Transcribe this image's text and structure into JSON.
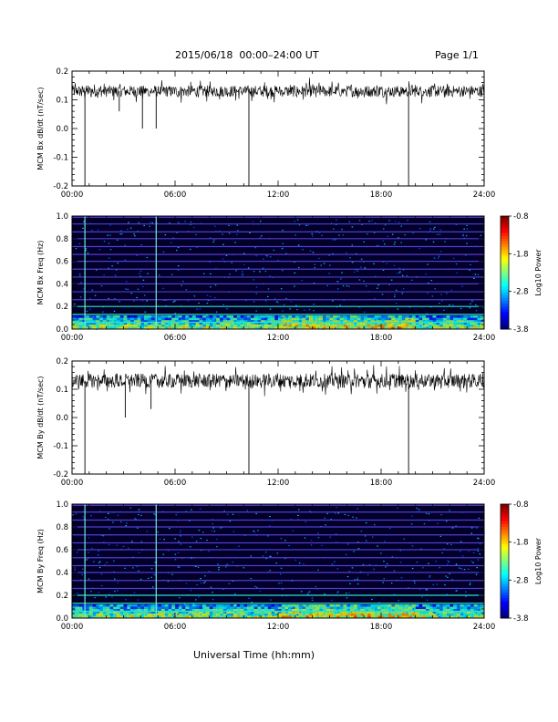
{
  "header": {
    "title": "2015/06/18  00:00–24:00 UT",
    "page": "Page 1/1"
  },
  "colors": {
    "trace": "#000000",
    "background": "#ffffff",
    "spectrogram_bg": "#000028"
  },
  "chart_data": [
    {
      "type": "line",
      "ylabel": "MCM Bx dB/dt (nT/sec)",
      "xlim": [
        0,
        24
      ],
      "xticks": [
        "00:00",
        "06:00",
        "12:00",
        "18:00",
        "24:00"
      ],
      "ylim": [
        -0.2,
        0.2
      ],
      "yticks": [
        -0.2,
        -0.1,
        0.0,
        0.1,
        0.2
      ],
      "baseline": 0.13,
      "noise_amplitude": 0.02,
      "spikes": [
        {
          "x": 0.75,
          "y": -0.2
        },
        {
          "x": 2.75,
          "y": 0.06
        },
        {
          "x": 4.1,
          "y": 0.0
        },
        {
          "x": 4.9,
          "y": 0.0
        },
        {
          "x": 10.3,
          "y": -0.2
        },
        {
          "x": 19.6,
          "y": -0.2
        }
      ]
    },
    {
      "type": "heatmap",
      "ylabel": "MCM Bx Freq (Hz)",
      "xlim": [
        0,
        24
      ],
      "xticks": [
        "00:00",
        "06:00",
        "12:00",
        "18:00",
        "24:00"
      ],
      "ylim": [
        0,
        1.0
      ],
      "yticks": [
        0.0,
        0.2,
        0.4,
        0.6,
        0.8,
        1.0
      ],
      "harmonic_lines_hz": [
        0.06,
        0.13,
        0.2,
        0.26,
        0.33,
        0.4,
        0.46,
        0.53,
        0.6,
        0.66,
        0.73,
        0.8,
        0.86,
        0.93,
        0.99
      ],
      "vertical_lines": [
        0.75,
        4.9
      ],
      "colorbar": {
        "label": "Log10 Power",
        "ticks": [
          -0.8,
          -1.8,
          -2.8,
          -3.8
        ]
      }
    },
    {
      "type": "line",
      "ylabel": "MCM By dB/dt (nT/sec)",
      "xlim": [
        0,
        24
      ],
      "xticks": [
        "00:00",
        "06:00",
        "12:00",
        "18:00",
        "24:00"
      ],
      "ylim": [
        -0.2,
        0.2
      ],
      "yticks": [
        -0.2,
        -0.1,
        0.0,
        0.1,
        0.2
      ],
      "baseline": 0.13,
      "noise_amplitude": 0.025,
      "spikes": [
        {
          "x": 0.75,
          "y": -0.2
        },
        {
          "x": 3.1,
          "y": 0.0
        },
        {
          "x": 4.6,
          "y": 0.03
        },
        {
          "x": 10.3,
          "y": -0.2
        },
        {
          "x": 19.6,
          "y": -0.2
        }
      ]
    },
    {
      "type": "heatmap",
      "ylabel": "MCM By Freq (Hz)",
      "xlim": [
        0,
        24
      ],
      "xticks": [
        "00:00",
        "06:00",
        "12:00",
        "18:00",
        "24:00"
      ],
      "ylim": [
        0,
        1.0
      ],
      "yticks": [
        0.0,
        0.2,
        0.4,
        0.6,
        0.8,
        1.0
      ],
      "harmonic_lines_hz": [
        0.06,
        0.13,
        0.2,
        0.26,
        0.33,
        0.4,
        0.46,
        0.53,
        0.6,
        0.66,
        0.73,
        0.8,
        0.86,
        0.93,
        0.99
      ],
      "vertical_lines": [
        0.75,
        4.9
      ],
      "colorbar": {
        "label": "Log10 Power",
        "ticks": [
          -0.8,
          -1.8,
          -2.8,
          -3.8
        ]
      }
    }
  ],
  "footer": {
    "xlabel": "Universal Time (hh:mm)"
  }
}
